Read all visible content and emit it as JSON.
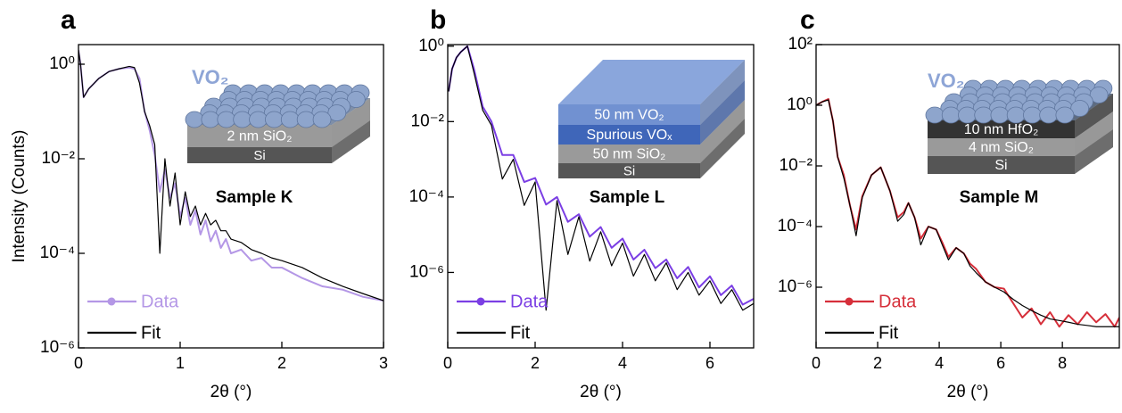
{
  "chart_data": [
    {
      "type": "line",
      "panel": "a",
      "xlabel": "2θ (°)",
      "ylabel": "Intensity (Counts)",
      "annotation": "Sample K",
      "inset": {
        "material": "VO₂",
        "layers": [
          "2 nm SiO₂",
          "Si"
        ]
      },
      "log_y": true,
      "legend": "lower left",
      "xlim": [
        0,
        3
      ],
      "xticks": [
        0,
        1,
        2,
        3
      ],
      "ylim": [
        1e-06,
        2.6
      ],
      "yticks": [
        {
          "value": 1,
          "label": "10⁰"
        },
        {
          "value": 0.01,
          "label": "10⁻²"
        },
        {
          "value": 0.0001,
          "label": "10⁻⁴"
        },
        {
          "value": 1e-06,
          "label": "10⁻⁶"
        }
      ],
      "x": [
        0,
        0.02,
        0.05,
        0.1,
        0.2,
        0.3,
        0.4,
        0.5,
        0.55,
        0.6,
        0.65,
        0.7,
        0.75,
        0.8,
        0.85,
        0.9,
        0.95,
        1.0,
        1.05,
        1.1,
        1.15,
        1.2,
        1.25,
        1.3,
        1.35,
        1.4,
        1.45,
        1.5,
        1.6,
        1.7,
        1.8,
        1.9,
        2.0,
        2.2,
        2.4,
        2.6,
        2.8,
        3.0
      ],
      "series": [
        {
          "name": "Data",
          "color": "#b497e6",
          "values": [
            2,
            1.0,
            0.2,
            0.3,
            0.5,
            0.7,
            0.8,
            0.85,
            0.8,
            0.5,
            0.1,
            0.04,
            0.012,
            0.002,
            0.006,
            0.0015,
            0.003,
            0.0006,
            0.0015,
            0.0004,
            0.0008,
            0.00025,
            0.0005,
            0.00018,
            0.0003,
            0.00013,
            0.0002,
            0.0001,
            0.00012,
            7e-05,
            8e-05,
            5e-05,
            5e-05,
            3e-05,
            2e-05,
            1.7e-05,
            1.2e-05,
            1e-05
          ]
        },
        {
          "name": "Fit",
          "color": "#000000",
          "values": [
            2,
            1,
            0.2,
            0.3,
            0.5,
            0.7,
            0.8,
            0.9,
            0.85,
            0.4,
            0.1,
            0.05,
            0.02,
            0.0001,
            0.01,
            0.001,
            0.005,
            0.0004,
            0.002,
            0.0006,
            0.001,
            0.0004,
            0.0007,
            0.0004,
            0.0005,
            0.0003,
            0.0003,
            0.0002,
            0.00017,
            0.00012,
            0.0001,
            8e-05,
            7e-05,
            5e-05,
            3e-05,
            2e-05,
            1.4e-05,
            1e-05
          ]
        }
      ]
    },
    {
      "type": "line",
      "panel": "b",
      "xlabel": "2θ (°)",
      "annotation": "Sample L",
      "inset": {
        "layers": [
          "50 nm VO₂",
          "Spurious VOₓ",
          "50 nm SiO₂",
          "Si"
        ]
      },
      "log_y": true,
      "legend": "lower left",
      "xlim": [
        0,
        7
      ],
      "xticks": [
        0,
        2,
        4,
        6
      ],
      "ylim": [
        1e-08,
        1.1
      ],
      "yticks": [
        {
          "value": 1,
          "label": "10⁰"
        },
        {
          "value": 0.01,
          "label": "10⁻²"
        },
        {
          "value": 0.0001,
          "label": "10⁻⁴"
        },
        {
          "value": 1e-06,
          "label": "10⁻⁶"
        }
      ],
      "x": [
        0.02,
        0.1,
        0.2,
        0.3,
        0.45,
        0.6,
        0.8,
        1.0,
        1.25,
        1.5,
        1.75,
        2.0,
        2.25,
        2.5,
        2.75,
        3.0,
        3.25,
        3.5,
        3.75,
        4.0,
        4.25,
        4.5,
        4.75,
        5.0,
        5.25,
        5.5,
        5.75,
        6.0,
        6.25,
        6.5,
        6.75,
        7.0
      ],
      "series": [
        {
          "name": "Data",
          "color": "#7b3fe4",
          "values": [
            0.063,
            0.25,
            0.5,
            0.7,
            1.0,
            0.25,
            0.025,
            0.01,
            0.0013,
            0.0013,
            0.00025,
            0.00032,
            6.3e-05,
            0.0001,
            2.2e-05,
            3.5e-05,
            8.9e-06,
            1.6e-05,
            4.5e-06,
            7.9e-06,
            2.2e-06,
            4e-06,
            1.3e-06,
            2.2e-06,
            7e-07,
            1.4e-06,
            4e-07,
            7.9e-07,
            2.5e-07,
            4.5e-07,
            1.4e-07,
            2e-07
          ]
        },
        {
          "name": "Fit",
          "color": "#000000",
          "values": [
            0.063,
            0.25,
            0.5,
            0.7,
            1.0,
            0.2,
            0.02,
            0.008,
            0.0003,
            0.001,
            6e-05,
            0.00025,
            1e-07,
            8e-05,
            3e-06,
            3e-05,
            2e-06,
            1.2e-05,
            1.5e-06,
            6e-06,
            8e-07,
            3e-06,
            6e-07,
            1.8e-06,
            3.5e-07,
            1e-06,
            2.5e-07,
            6e-07,
            1.5e-07,
            3.5e-07,
            1e-07,
            1.5e-07
          ]
        }
      ]
    },
    {
      "type": "line",
      "panel": "c",
      "xlabel": "2θ (°)",
      "annotation": "Sample M",
      "inset": {
        "material": "VO₂",
        "layers": [
          "10 nm HfO₂",
          "4 nm SiO₂",
          "Si"
        ]
      },
      "log_y": true,
      "legend": "lower left",
      "xlim": [
        0,
        9.85
      ],
      "xticks": [
        0,
        2,
        4,
        6,
        8
      ],
      "ylim": [
        1e-08,
        100
      ],
      "yticks": [
        {
          "value": 100,
          "label": "10²"
        },
        {
          "value": 1,
          "label": "10⁰"
        },
        {
          "value": 0.01,
          "label": "10⁻²"
        },
        {
          "value": 0.0001,
          "label": "10⁻⁴"
        },
        {
          "value": 1e-06,
          "label": "10⁻⁶"
        }
      ],
      "x": [
        0,
        0.2,
        0.4,
        0.55,
        0.7,
        0.9,
        1.1,
        1.3,
        1.5,
        1.8,
        2.1,
        2.4,
        2.65,
        2.85,
        3.0,
        3.2,
        3.4,
        3.65,
        3.9,
        4.1,
        4.3,
        4.55,
        4.8,
        5.0,
        5.2,
        5.5,
        5.8,
        6.1,
        6.4,
        6.7,
        7.0,
        7.3,
        7.6,
        7.9,
        8.2,
        8.5,
        8.8,
        9.1,
        9.4,
        9.7,
        9.85
      ],
      "series": [
        {
          "name": "Data",
          "color": "#d62f3a",
          "values": [
            1,
            1.3,
            1.6,
            0.3,
            0.02,
            0.005,
            0.0005,
            8e-05,
            0.001,
            0.005,
            0.009,
            0.0015,
            0.0002,
            0.0003,
            0.0006,
            0.0002,
            4e-05,
            0.0001,
            8e-05,
            3e-05,
            1e-05,
            2e-05,
            1.3e-05,
            6e-06,
            4e-06,
            1.5e-06,
            1e-06,
            9e-07,
            3e-07,
            1e-07,
            2e-07,
            6e-08,
            1.5e-07,
            5e-08,
            1.2e-07,
            6e-08,
            1.5e-07,
            7e-08,
            1.3e-07,
            5e-08,
            1e-07
          ]
        },
        {
          "name": "Fit",
          "color": "#000000",
          "values": [
            1,
            1.3,
            1.5,
            0.3,
            0.02,
            0.004,
            0.0005,
            5e-05,
            0.0009,
            0.005,
            0.009,
            0.0015,
            0.00015,
            0.00025,
            0.0006,
            0.0002,
            2.5e-05,
            0.0001,
            8e-05,
            2.5e-05,
            8e-06,
            2e-05,
            1.3e-05,
            5e-06,
            3e-06,
            1.5e-06,
            1e-06,
            7e-07,
            4e-07,
            2.5e-07,
            1.7e-07,
            1.2e-07,
            9e-08,
            8e-08,
            7e-08,
            6e-08,
            5.5e-08,
            5e-08,
            5e-08,
            5e-08,
            5e-08
          ]
        }
      ]
    }
  ]
}
